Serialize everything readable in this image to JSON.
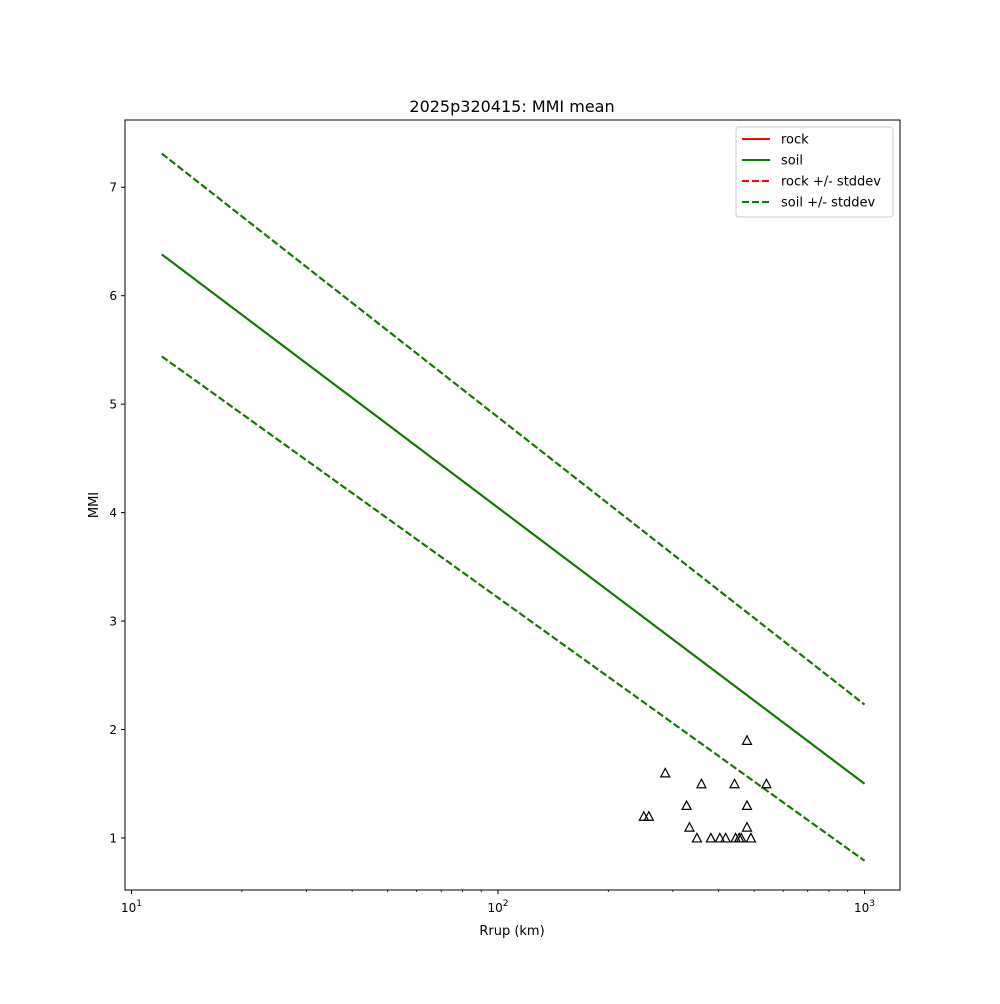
{
  "chart_data": {
    "type": "line",
    "title": "2025p320415: MMI mean",
    "xlabel": "Rrup (km)",
    "ylabel": "MMI",
    "xscale": "log",
    "xlim": [
      9.6,
      1250
    ],
    "ylim": [
      0.52,
      7.62
    ],
    "x_ticks": [
      {
        "value": 10,
        "base": "10",
        "exp": "1"
      },
      {
        "value": 100,
        "base": "10",
        "exp": "2"
      },
      {
        "value": 1000,
        "base": "10",
        "exp": "3"
      }
    ],
    "y_ticks": [
      1,
      2,
      3,
      4,
      5,
      6,
      7
    ],
    "grid": false,
    "legend_position": "top-right",
    "series": [
      {
        "name": "rock",
        "color": "#ff0000",
        "style": "solid",
        "x": [
          12.1,
          1000
        ],
        "y": [
          6.38,
          1.5
        ]
      },
      {
        "name": "soil",
        "color": "#008000",
        "style": "solid",
        "x": [
          12.1,
          1000
        ],
        "y": [
          6.38,
          1.5
        ]
      },
      {
        "name": "rock +/- stddev",
        "color": "#ff0000",
        "style": "dashed",
        "x": [
          12.1,
          1000
        ],
        "y": [
          7.31,
          2.23
        ],
        "lower_y": [
          5.44,
          0.79
        ]
      },
      {
        "name": "soil +/- stddev",
        "color": "#008000",
        "style": "dashed",
        "x": [
          12.1,
          1000
        ],
        "y": [
          7.31,
          2.23
        ],
        "lower_y": [
          5.44,
          0.79
        ]
      }
    ],
    "observations": {
      "marker": "triangle",
      "points": [
        {
          "x": 250,
          "y": 1.2
        },
        {
          "x": 258,
          "y": 1.2
        },
        {
          "x": 286,
          "y": 1.6
        },
        {
          "x": 327,
          "y": 1.3
        },
        {
          "x": 333,
          "y": 1.1
        },
        {
          "x": 349,
          "y": 1.0
        },
        {
          "x": 359,
          "y": 1.5
        },
        {
          "x": 381,
          "y": 1.0
        },
        {
          "x": 403,
          "y": 1.0
        },
        {
          "x": 418,
          "y": 1.0
        },
        {
          "x": 442,
          "y": 1.5
        },
        {
          "x": 445,
          "y": 1.0
        },
        {
          "x": 455,
          "y": 1.0
        },
        {
          "x": 461,
          "y": 1.0
        },
        {
          "x": 478,
          "y": 1.9
        },
        {
          "x": 478,
          "y": 1.3
        },
        {
          "x": 478,
          "y": 1.1
        },
        {
          "x": 490,
          "y": 1.0
        },
        {
          "x": 540,
          "y": 1.5
        }
      ]
    }
  }
}
